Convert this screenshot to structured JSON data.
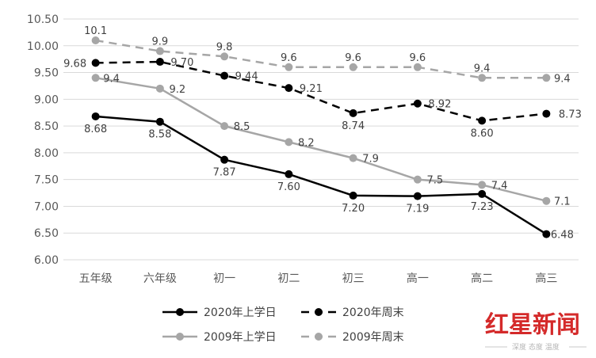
{
  "chart_data": {
    "type": "line",
    "categories": [
      "五年级",
      "六年级",
      "初一",
      "初二",
      "初三",
      "高一",
      "高二",
      "高三"
    ],
    "ylim": [
      6.0,
      10.5
    ],
    "yticks": [
      "6.00",
      "6.50",
      "7.00",
      "7.50",
      "8.00",
      "8.50",
      "9.00",
      "9.50",
      "10.00",
      "10.50"
    ],
    "grid": true,
    "legend_position": "bottom",
    "series": [
      {
        "name": "2020年上学日",
        "values": [
          8.68,
          8.58,
          7.87,
          7.6,
          7.2,
          7.19,
          7.23,
          6.48
        ],
        "labels": [
          "8.68",
          "8.58",
          "7.87",
          "7.60",
          "7.20",
          "7.19",
          "7.23",
          "6.48"
        ],
        "color": "#000000",
        "dash": false
      },
      {
        "name": "2020年周末",
        "values": [
          9.68,
          9.7,
          9.44,
          9.21,
          8.74,
          8.92,
          8.6,
          8.73
        ],
        "labels": [
          "9.68",
          "9.70",
          "9.44",
          "9.21",
          "8.74",
          "8.92",
          "8.60",
          "8.73"
        ],
        "color": "#000000",
        "dash": true
      },
      {
        "name": "2009年上学日",
        "values": [
          9.4,
          9.2,
          8.5,
          8.2,
          7.9,
          7.5,
          7.4,
          7.1
        ],
        "labels": [
          "9.4",
          "9.2",
          "8.5",
          "8.2",
          "7.9",
          "7.5",
          "7.4",
          "7.1"
        ],
        "color": "#a6a6a6",
        "dash": false
      },
      {
        "name": "2009年周末",
        "values": [
          10.1,
          9.9,
          9.8,
          9.6,
          9.6,
          9.6,
          9.4,
          9.4
        ],
        "labels": [
          "10.1",
          "9.9",
          "9.8",
          "9.6",
          "9.6",
          "9.6",
          "9.4",
          "9.4"
        ],
        "color": "#a6a6a6",
        "dash": true
      }
    ]
  },
  "watermark": {
    "title": "红星新闻",
    "subtitle": "深度 态度 温度",
    "color": "#d42a2a"
  }
}
